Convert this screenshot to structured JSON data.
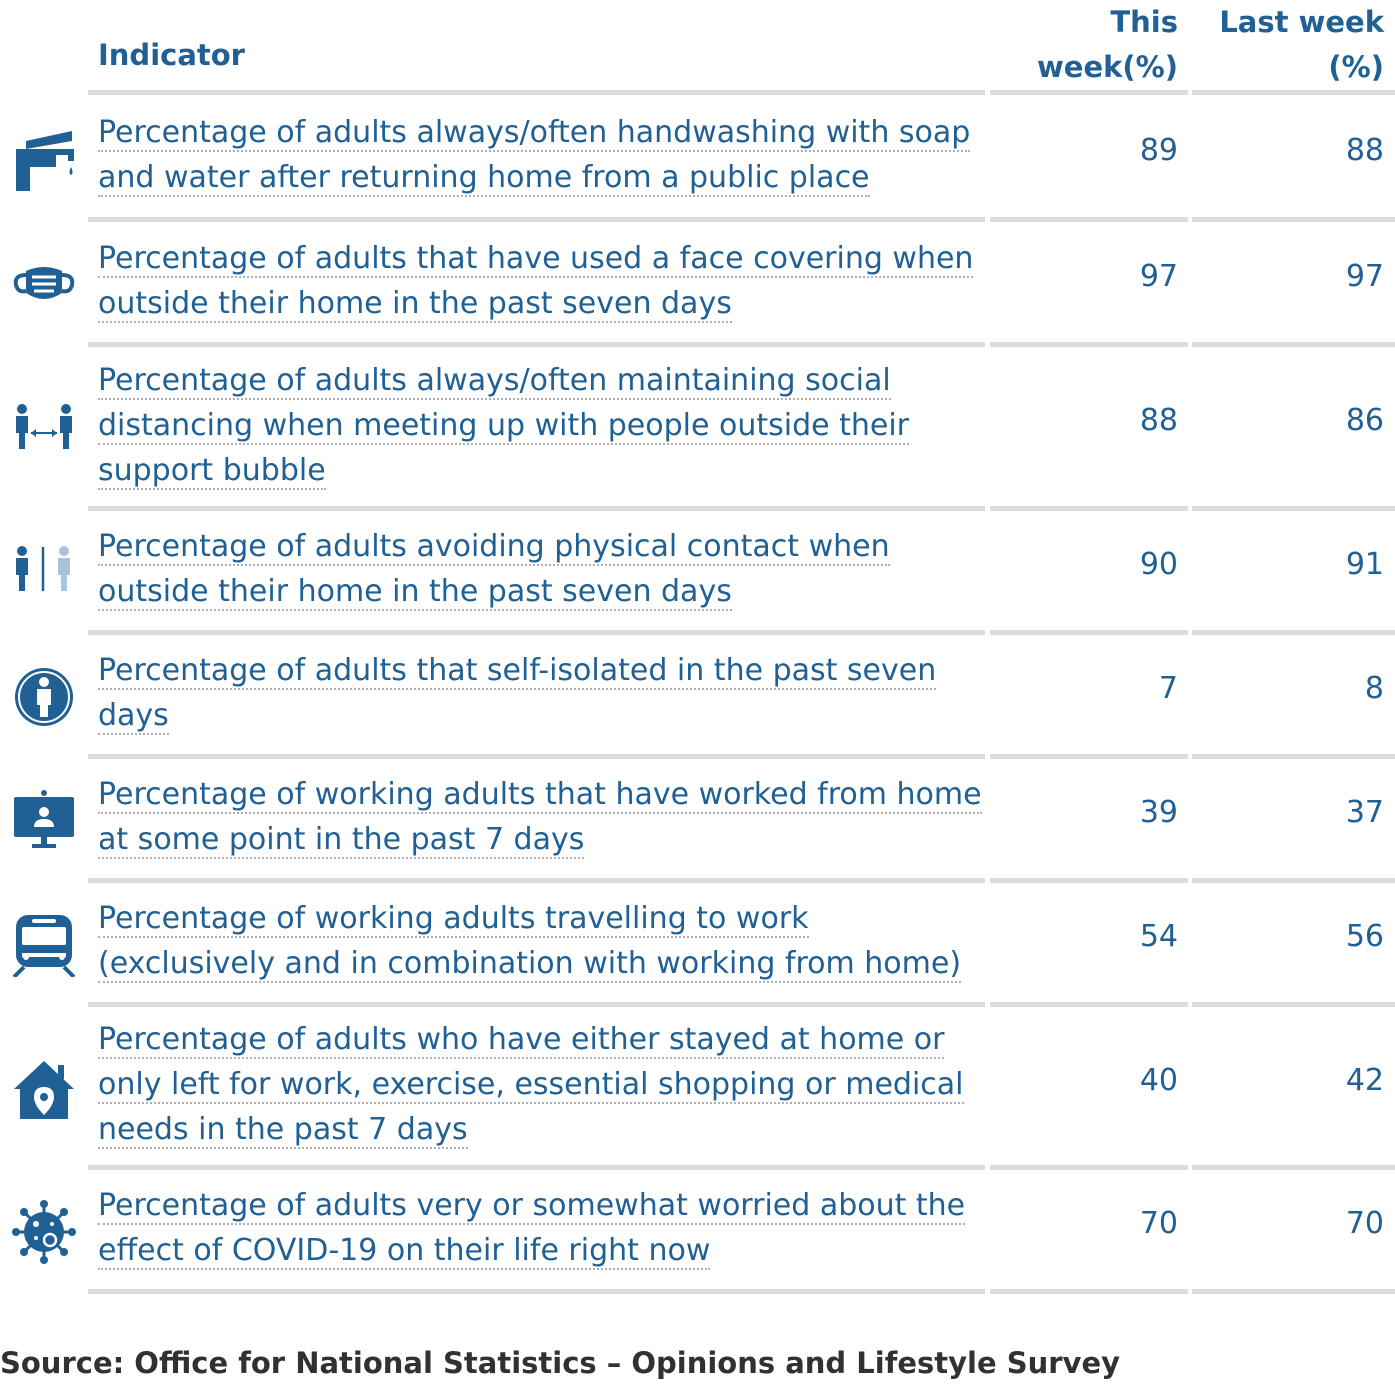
{
  "chart_data": {
    "type": "table",
    "columns": [
      "Indicator",
      "This week(%)",
      "Last week (%)"
    ],
    "header": {
      "indicator": "Indicator",
      "this_week_line1": "This",
      "this_week_line2": "week(%)",
      "last_week_line1": "Last week",
      "last_week_line2": "(%)"
    },
    "rows": [
      {
        "icon": "tap-icon",
        "indicator": "Percentage of adults always/often handwashing with soap and water after returning home from a public place",
        "this_week": 89,
        "last_week": 88
      },
      {
        "icon": "face-mask-icon",
        "indicator": "Percentage of adults that have used a face covering when outside their home in the past seven days",
        "this_week": 97,
        "last_week": 97
      },
      {
        "icon": "social-distancing-icon",
        "indicator": "Percentage of adults always/often maintaining social distancing when meeting up with people outside their support bubble",
        "this_week": 88,
        "last_week": 86
      },
      {
        "icon": "no-contact-icon",
        "indicator": "Percentage of adults avoiding physical contact when outside their home in the past seven days",
        "this_week": 90,
        "last_week": 91
      },
      {
        "icon": "self-isolation-icon",
        "indicator": "Percentage of adults that self-isolated in the past seven days",
        "this_week": 7,
        "last_week": 8
      },
      {
        "icon": "work-from-home-icon",
        "indicator": "Percentage of working adults that have worked from home at some point in the past 7 days",
        "this_week": 39,
        "last_week": 37
      },
      {
        "icon": "train-icon",
        "indicator": "Percentage of working adults travelling to work (exclusively and in combination with working from home)",
        "this_week": 54,
        "last_week": 56
      },
      {
        "icon": "house-location-icon",
        "indicator": "Percentage of adults who have either stayed at home or only left for work, exercise, essential shopping or medical needs in the past 7 days",
        "this_week": 40,
        "last_week": 42
      },
      {
        "icon": "virus-icon",
        "indicator": "Percentage of adults very or somewhat worried about the effect of COVID-19 on their life right now",
        "this_week": 70,
        "last_week": 70
      }
    ],
    "source": "Source: Office for National Statistics – Opinions and Lifestyle Survey"
  },
  "colors": {
    "text": "#206095",
    "icon": "#206095",
    "icon_light": "#a8c4dc",
    "rule": "#dcdcdc",
    "source": "#323132"
  }
}
